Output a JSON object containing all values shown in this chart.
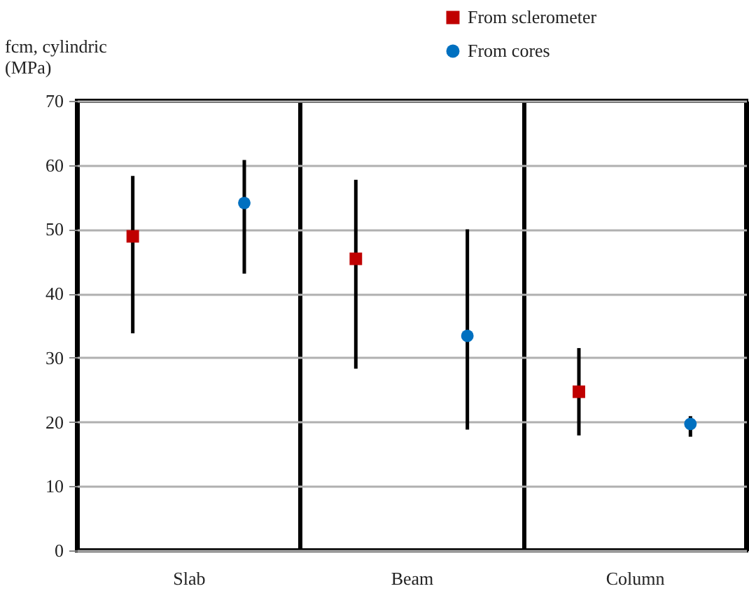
{
  "chart_data": {
    "type": "scatter",
    "ylabel": "fcm, cylindric (MPa)",
    "categories": [
      "Slab",
      "Beam",
      "Column"
    ],
    "series": [
      {
        "name": "From sclerometer",
        "color": "#c00000",
        "marker": "square",
        "values": [
          48.9,
          45.4,
          24.7
        ],
        "errors": [
          [
            33.8,
            58.3
          ],
          [
            28.3,
            57.7
          ],
          [
            17.9,
            31.5
          ]
        ]
      },
      {
        "name": "From cores",
        "color": "#0070c0",
        "marker": "circle",
        "values": [
          54.1,
          33.4,
          19.7
        ],
        "errors": [
          [
            43.1,
            60.8
          ],
          [
            18.8,
            50.0
          ],
          [
            17.7,
            20.9
          ]
        ]
      }
    ],
    "ylim": [
      0,
      70
    ],
    "yticks": [
      0,
      10,
      20,
      30,
      40,
      50,
      60,
      70
    ],
    "grid": true,
    "legend": "top right"
  }
}
